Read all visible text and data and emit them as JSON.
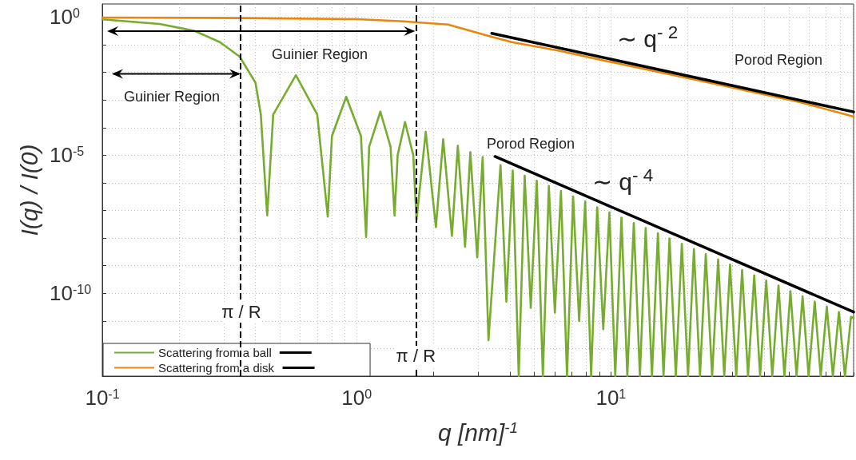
{
  "chart_data": {
    "type": "line",
    "xlabel": "q [nm]$^{-1}$",
    "ylabel": "I(q) / I(0)",
    "log": "xy",
    "xlim": [
      0.1,
      90
    ],
    "ylim": [
      1e-13,
      3
    ],
    "xticks": [
      {
        "value": 0.1,
        "label": "10$^{-1}$"
      },
      {
        "value": 0.2,
        "label": null
      },
      {
        "value": 0.3,
        "label": null
      },
      {
        "value": 0.4,
        "label": null
      },
      {
        "value": 0.5,
        "label": null
      },
      {
        "value": 0.6,
        "label": null
      },
      {
        "value": 0.7,
        "label": null
      },
      {
        "value": 0.8,
        "label": null
      },
      {
        "value": 0.9,
        "label": null
      },
      {
        "value": 1,
        "label": "10$^{0}$"
      },
      {
        "value": 2,
        "label": null
      },
      {
        "value": 3,
        "label": null
      },
      {
        "value": 4,
        "label": null
      },
      {
        "value": 5,
        "label": null
      },
      {
        "value": 6,
        "label": null
      },
      {
        "value": 7,
        "label": null
      },
      {
        "value": 8,
        "label": null
      },
      {
        "value": 9,
        "label": null
      },
      {
        "value": 10,
        "label": "10$^{1}$"
      },
      {
        "value": 20,
        "label": null
      },
      {
        "value": 30,
        "label": null
      },
      {
        "value": 40,
        "label": null
      },
      {
        "value": 50,
        "label": null
      },
      {
        "value": 60,
        "label": null
      },
      {
        "value": 70,
        "label": null
      },
      {
        "value": 80,
        "label": null
      },
      {
        "value": 90,
        "label": null
      }
    ],
    "yticks": [
      {
        "value": 1e-13,
        "label": null
      },
      {
        "value": 1e-12,
        "label": null
      },
      {
        "value": 1e-11,
        "label": null
      },
      {
        "value": 1e-10,
        "label": "10$^{-10}$"
      },
      {
        "value": 1e-09,
        "label": null
      },
      {
        "value": 1e-08,
        "label": null
      },
      {
        "value": 1e-07,
        "label": null
      },
      {
        "value": 1e-06,
        "label": null
      },
      {
        "value": 1e-05,
        "label": "10$^{-5}$"
      },
      {
        "value": 0.0001,
        "label": null
      },
      {
        "value": 0.001,
        "label": null
      },
      {
        "value": 0.01,
        "label": null
      },
      {
        "value": 0.1,
        "label": null
      },
      {
        "value": 1,
        "label": "10$^{0}$"
      }
    ],
    "grid": true,
    "legend": "bottom left",
    "marker": "none",
    "line_style": "solid",
    "series": [
      {
        "name": "Scattering from a ball",
        "color": "#77ac30",
        "x": [
          0.1,
          0.168,
          0.23,
          0.29,
          0.347,
          0.4,
          0.42,
          0.445,
          0.47,
          0.577,
          0.7,
          0.77,
          0.8,
          0.91,
          1.04,
          1.09,
          1.12,
          1.24,
          1.36,
          1.41,
          1.45,
          1.55,
          1.67,
          1.72,
          1.87,
          2.05,
          2.19,
          2.37,
          2.5,
          2.67,
          2.8,
          2.98,
          3.13,
          3.3,
          3.68,
          3.88,
          4.11,
          4.34,
          4.58,
          4.84,
          5.11,
          5.4,
          5.7,
          6.02,
          6.36,
          6.72,
          7.1,
          7.5,
          7.92,
          8.36,
          8.83,
          9.33,
          9.86,
          10.4,
          11,
          11.6,
          12.3,
          13,
          13.7,
          14.5,
          15.3,
          16.1,
          17,
          18,
          19,
          20.1,
          21.2,
          22.4,
          23.6,
          25,
          26.4,
          27.9,
          29.4,
          31.1,
          32.8,
          34.6,
          36.6,
          38.6,
          40.8,
          43.1,
          45.6,
          48.1,
          50.8,
          53.7,
          56.7,
          59.9,
          63.3,
          66.8,
          70.6,
          74.6,
          78.8,
          83.2,
          87.9,
          90
        ],
        "values": [
          0.83,
          0.57,
          0.32,
          0.125,
          0.037,
          0.0043,
          0.0003,
          6.6e-08,
          0.0003,
          0.0079,
          0.0003,
          6e-08,
          5e-05,
          0.0013,
          5e-05,
          1.1e-08,
          2e-05,
          0.00038,
          2e-05,
          6.5e-08,
          1e-05,
          0.00016,
          1e-05,
          4.6e-08,
          7e-05,
          2.5e-08,
          3.8e-05,
          1.2e-08,
          2.2e-05,
          4.9e-09,
          1.3e-05,
          2e-09,
          8.5e-06,
          2e-12,
          4.4e-06,
          5e-11,
          2.8e-06,
          1e-13,
          1.8e-06,
          3e-11,
          1.2e-06,
          1e-13,
          7.7e-07,
          2e-11,
          5e-07,
          1e-13,
          3.2e-07,
          1e-11,
          2.1e-07,
          1e-13,
          1.3e-07,
          5e-12,
          8.6e-08,
          1e-13,
          5.5e-08,
          1e-13,
          3.5e-08,
          1e-13,
          2.3e-08,
          1e-13,
          1.5e-08,
          1e-13,
          9.7e-09,
          1e-13,
          6.2e-09,
          1e-13,
          4e-09,
          1e-13,
          2.6e-09,
          1e-13,
          1.7e-09,
          1e-13,
          1.1e-09,
          1e-13,
          7e-10,
          1e-13,
          4.5e-10,
          1e-13,
          2.9e-10,
          1e-13,
          1.9e-10,
          1e-13,
          1.2e-10,
          1e-13,
          7.8e-11,
          1e-13,
          5e-11,
          1e-13,
          3.3e-11,
          1e-13,
          2.1e-11,
          1e-13,
          1.4e-11,
          1.3e-11
        ]
      },
      {
        "name": "Scattering from a disk",
        "color": "#e8870e",
        "x": [
          0.1,
          0.35,
          1.0,
          1.48,
          2.29,
          3.3,
          4.08,
          6.3,
          10.4,
          26.5,
          55,
          90
        ],
        "values": [
          0.97,
          0.93,
          0.85,
          0.72,
          0.54,
          0.21,
          0.125,
          0.06,
          0.022,
          0.0036,
          0.00085,
          0.00025
        ]
      },
      {
        "color": "#000000",
        "x": [
          3.4,
          90
        ],
        "values": [
          0.26,
          0.00037
        ]
      },
      {
        "color": "#000000",
        "x": [
          3.5,
          90
        ],
        "values": [
          9e-06,
          2.1e-11
        ]
      }
    ],
    "ref_lines": [
      {
        "axis": "x",
        "value": 0.352,
        "label": "π / R",
        "color": "#000000",
        "line_style": "dashed"
      },
      {
        "axis": "x",
        "value": 1.71,
        "label": "π / R",
        "color": "#000000",
        "line_style": "dashed"
      }
    ],
    "annotations": [
      "Guinier Region",
      {
        "text": "Guinier Region",
        "x": 0.352,
        "y": 0.0089
      },
      "∼ q$^{- 2}$",
      "Porod Region",
      "Porod Region",
      "∼ q$^{- 4}$"
    ]
  }
}
